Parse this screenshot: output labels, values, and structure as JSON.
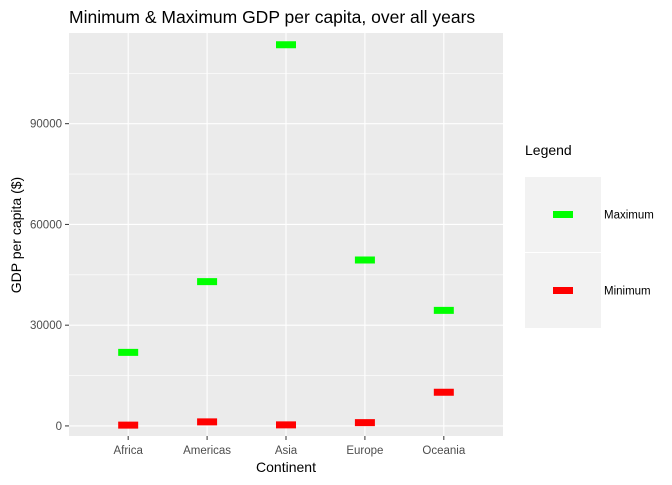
{
  "chart_data": {
    "type": "scatter",
    "title": "Minimum & Maximum GDP per capita, over all years",
    "xlabel": "Continent",
    "ylabel": "GDP per capita ($)",
    "categories": [
      "Africa",
      "Americas",
      "Asia",
      "Europe",
      "Oceania"
    ],
    "ylim": [
      -3000,
      117000
    ],
    "yticks": [
      0,
      30000,
      60000,
      90000
    ],
    "ytick_labels": [
      "0",
      "30000",
      "60000",
      "90000"
    ],
    "grid": true,
    "legend": {
      "title": "Legend",
      "position": "right"
    },
    "series": [
      {
        "name": "Maximum",
        "color": "#00ff00",
        "values": [
          21900,
          42950,
          113500,
          49400,
          34400
        ]
      },
      {
        "name": "Minimum",
        "color": "#ff0000",
        "values": [
          241,
          1202,
          331,
          974,
          10040
        ]
      }
    ],
    "colors": {
      "panel_background": "#ebebeb",
      "grid_major": "#ffffff",
      "legend_key_background": "#f2f2f2",
      "axis_text": "#4d4d4d"
    }
  }
}
